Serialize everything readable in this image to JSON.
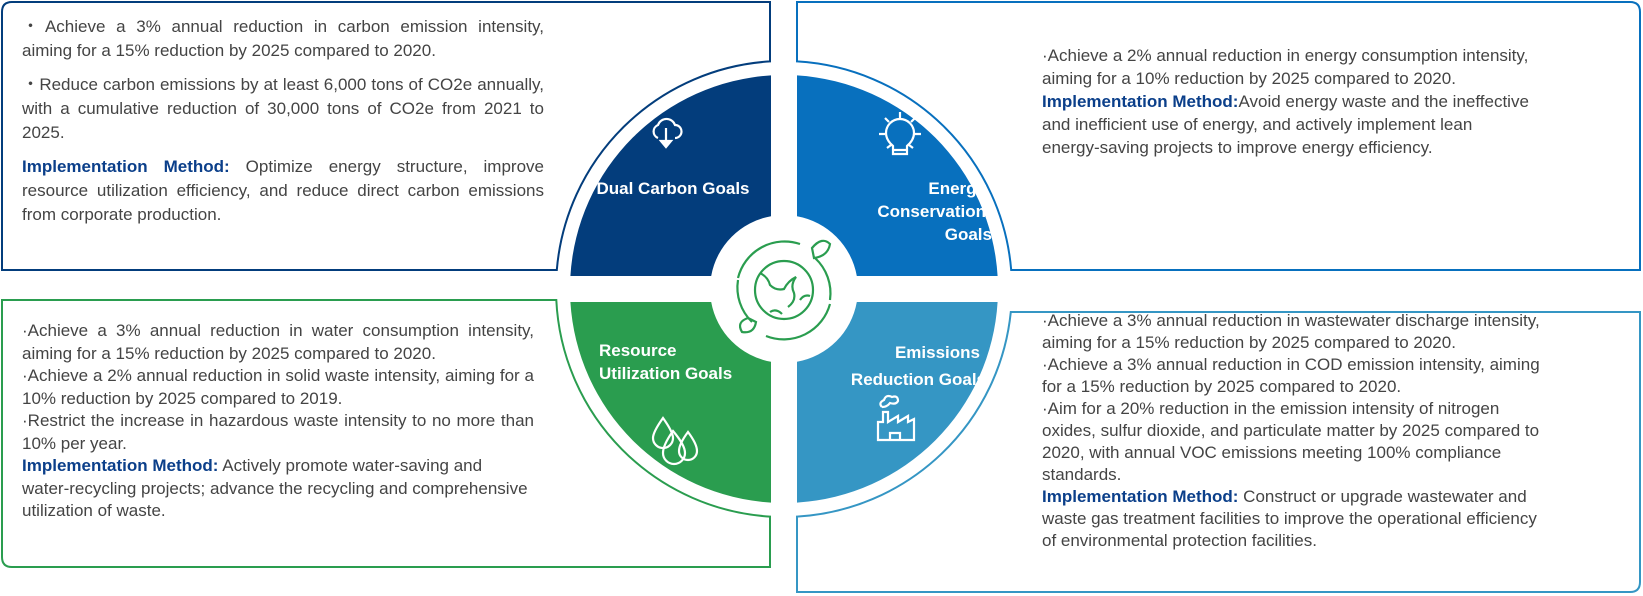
{
  "colors": {
    "dual_carbon": "#033d7c",
    "energy": "#0870be",
    "resource": "#2a9d4f",
    "emissions": "#3596c4",
    "implementation_label": "#0b3f8a",
    "body_text": "#444444"
  },
  "center": {
    "icon": "globe-recycle-icon"
  },
  "dual_carbon": {
    "title": "Dual Carbon Goals",
    "icon": "cloud-download-icon",
    "bullets": [
      "・Achieve a 3% annual reduction in carbon emission intensity, aiming for a 15% reduction by 2025 compared to 2020.",
      "・Reduce carbon emissions by at least 6,000 tons of CO2e annually, with a cumulative reduction of 30,000 tons of CO2e from 2021 to 2025."
    ],
    "method_label": "Implementation Method:",
    "method_text": " Optimize energy structure, improve resource utilization efficiency, and reduce direct carbon emissions from corporate production."
  },
  "energy": {
    "title_lines": [
      "Energy",
      "Conservation",
      "Goals"
    ],
    "icon": "lightbulb-icon",
    "bullets": [
      "·Achieve a 2% annual reduction in energy consumption intensity, aiming for a 10% reduction by 2025 compared to 2020."
    ],
    "method_label": "Implementation Method:",
    "method_text": "Avoid energy waste and the ineffective and inefficient use of energy, and actively implement lean energy-saving projects to improve energy efficiency."
  },
  "resource": {
    "title_lines": [
      "Resource",
      "Utilization Goals"
    ],
    "icon": "water-drops-icon",
    "bullets": [
      "·Achieve a 3% annual reduction in water consumption intensity, aiming for a 15% reduction by 2025 compared to 2020.",
      "·Achieve a 2% annual reduction in solid waste intensity, aiming for a 10% reduction by 2025 compared to 2019.",
      "·Restrict the increase in hazardous waste intensity to no more than 10% per year."
    ],
    "method_label": "Implementation Method:",
    "method_text": " Actively promote water-saving and water-recycling projects; advance the recycling and comprehensive utilization of waste."
  },
  "emissions": {
    "title_lines": [
      "Emissions",
      "Reduction Goals"
    ],
    "icon": "factory-icon",
    "bullets": [
      "·Achieve a 3% annual reduction in wastewater discharge intensity, aiming for a 15% reduction by 2025 compared to 2020.",
      "·Achieve a 3% annual reduction in COD emission intensity, aiming for a 15% reduction by 2025 compared to 2020.",
      "·Aim for a 20% reduction in the emission intensity of nitrogen oxides, sulfur dioxide, and particulate matter by 2025 compared to 2020, with annual VOC emissions meeting 100% compliance standards."
    ],
    "method_label": "Implementation Method:",
    "method_text": " Construct or upgrade wastewater and waste gas treatment facilities to improve the operational efficiency of environmental protection facilities."
  }
}
